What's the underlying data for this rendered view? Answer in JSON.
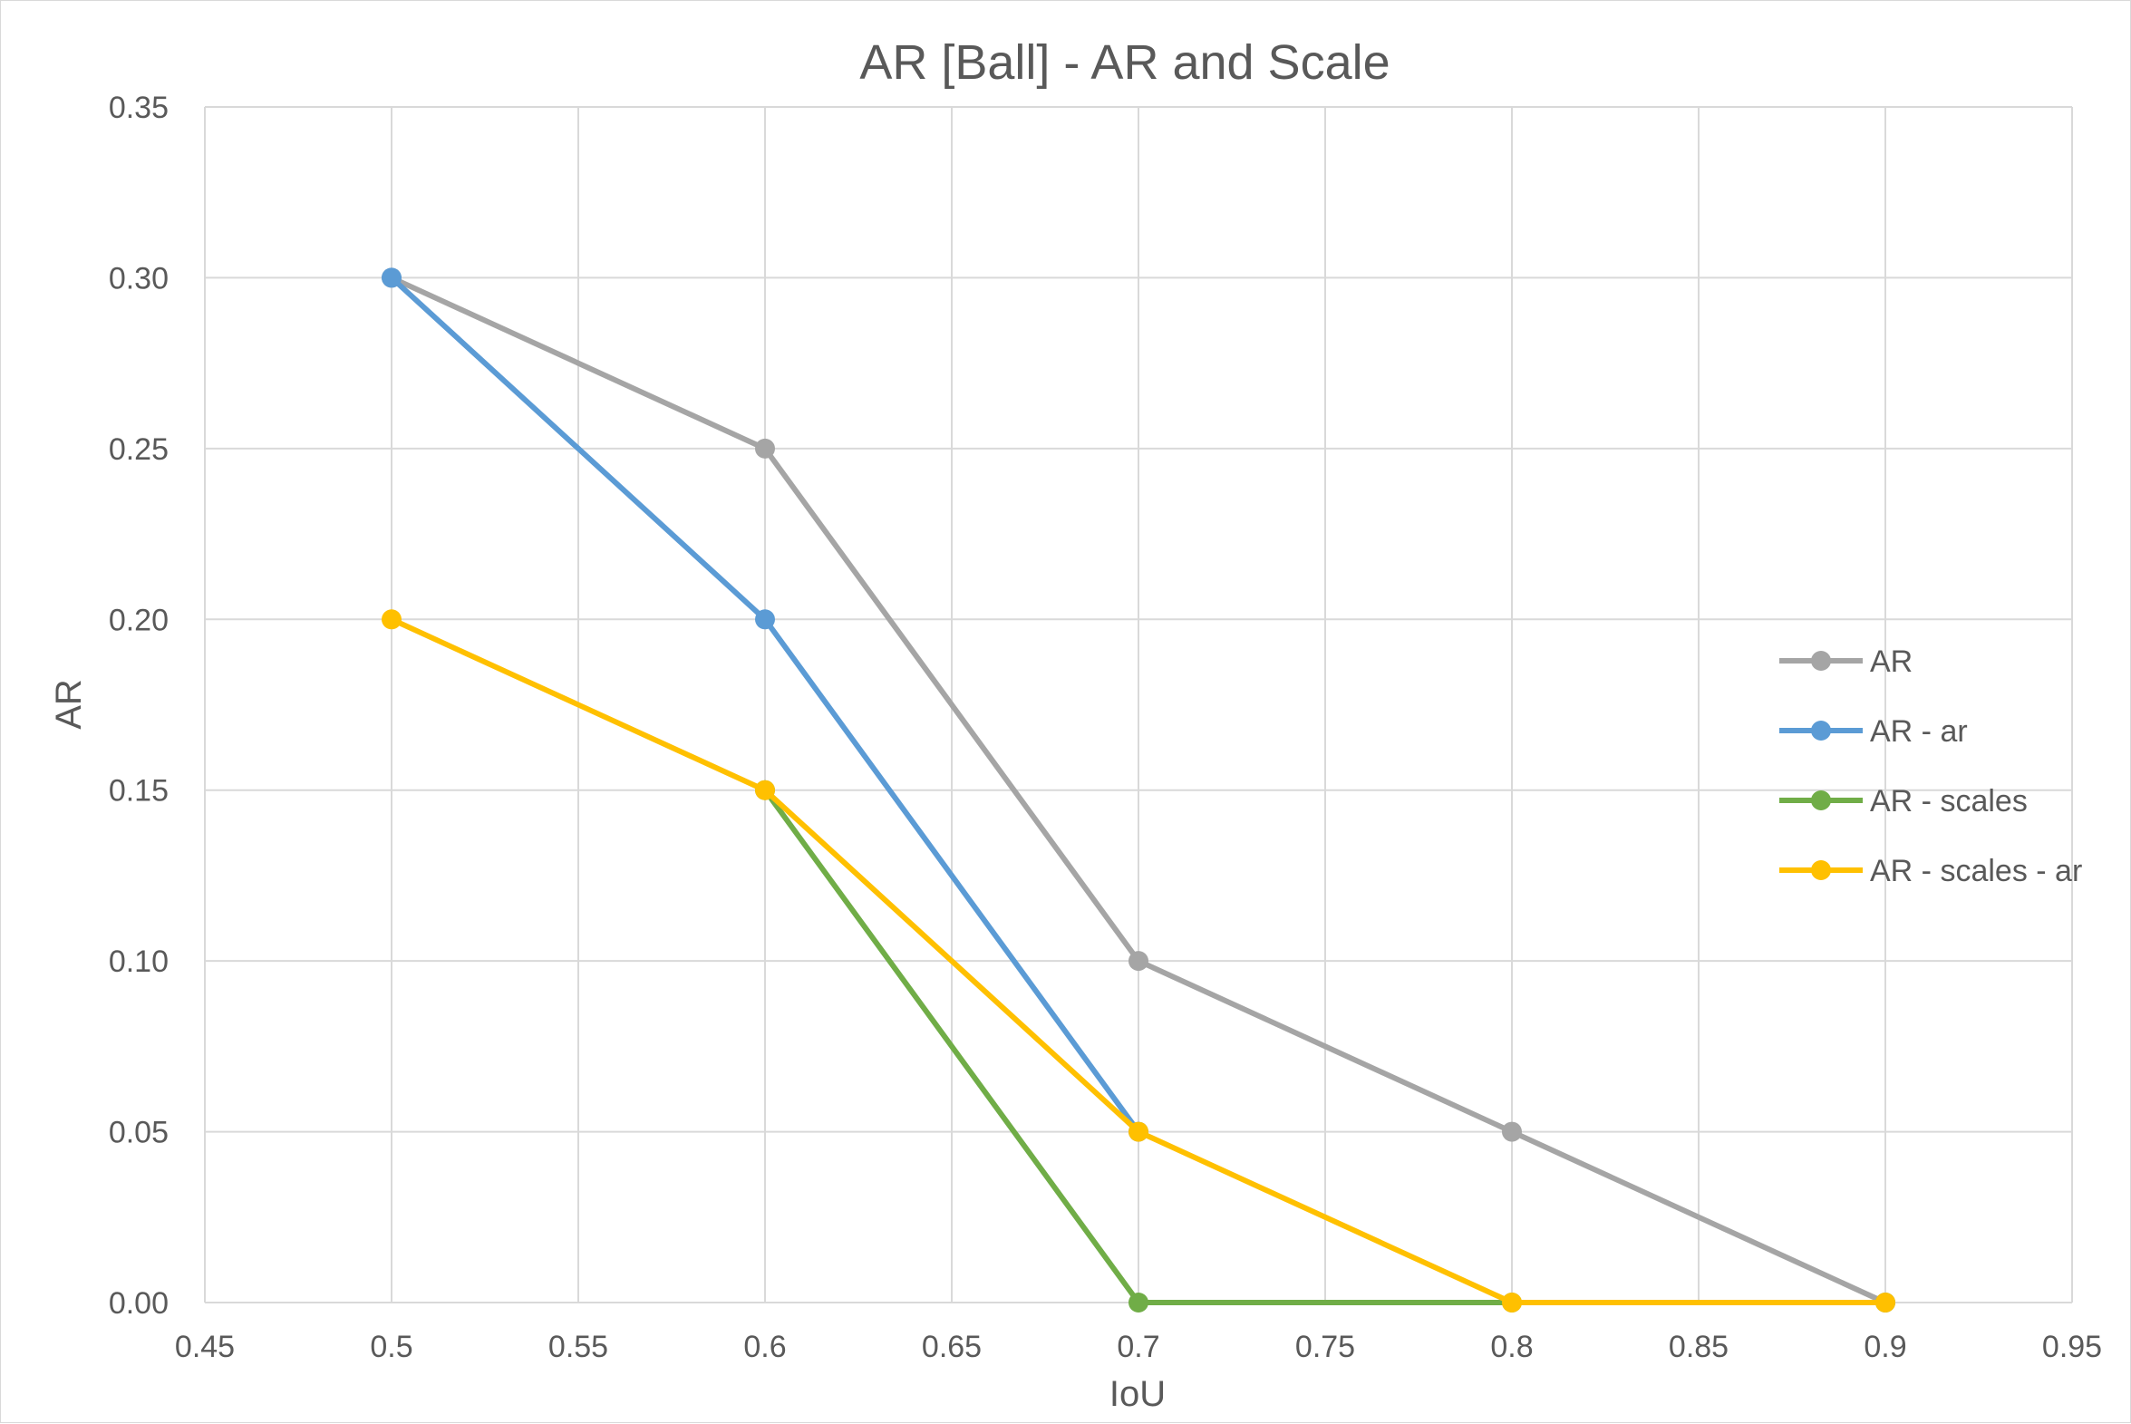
{
  "chart_data": {
    "type": "line",
    "title": "AR [Ball] - AR and Scale",
    "xlabel": "IoU",
    "ylabel": "AR",
    "xlim": [
      0.45,
      0.95
    ],
    "ylim": [
      0,
      0.35
    ],
    "x_ticks": [
      "0.45",
      "0.5",
      "0.55",
      "0.6",
      "0.65",
      "0.7",
      "0.75",
      "0.8",
      "0.85",
      "0.9",
      "0.95"
    ],
    "y_ticks": [
      "0.00",
      "0.05",
      "0.10",
      "0.15",
      "0.20",
      "0.25",
      "0.30",
      "0.35"
    ],
    "grid": true,
    "legend_position": "right",
    "series": [
      {
        "name": "AR",
        "color": "#a5a5a5",
        "x": [
          0.5,
          0.6,
          0.7,
          0.8,
          0.9
        ],
        "y": [
          0.3,
          0.25,
          0.1,
          0.05,
          0.0
        ]
      },
      {
        "name": "AR - ar",
        "color": "#5b9bd5",
        "x": [
          0.5,
          0.6,
          0.7
        ],
        "y": [
          0.3,
          0.2,
          0.05
        ]
      },
      {
        "name": "AR - scales",
        "color": "#70ad47",
        "x": [
          0.6,
          0.7,
          0.8,
          0.9
        ],
        "y": [
          0.15,
          0.0,
          0.0,
          0.0
        ]
      },
      {
        "name": "AR - scales - ar",
        "color": "#ffc000",
        "x": [
          0.5,
          0.6,
          0.7,
          0.8,
          0.9
        ],
        "y": [
          0.2,
          0.15,
          0.05,
          0.0,
          0.0
        ]
      }
    ]
  }
}
